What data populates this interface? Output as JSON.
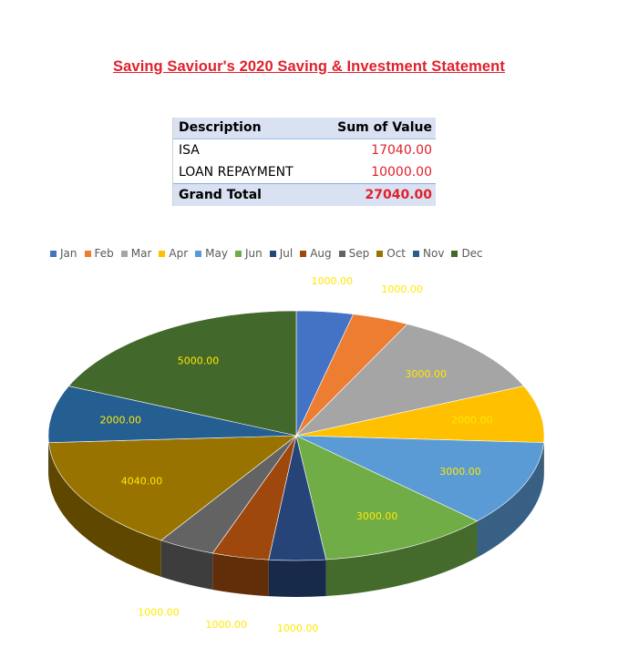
{
  "title": "Saving Saviour's 2020 Saving & Investment Statement",
  "pivot": {
    "headers": [
      "Description",
      "Sum of  Value"
    ],
    "rows": [
      {
        "description": "ISA",
        "value": "17040.00"
      },
      {
        "description": "LOAN REPAYMENT",
        "value": "10000.00"
      }
    ],
    "total": {
      "label": "Grand Total",
      "value": "27040.00"
    }
  },
  "chart_data": {
    "type": "pie",
    "style": "3d",
    "categories": [
      "Jan",
      "Feb",
      "Mar",
      "Apr",
      "May",
      "Jun",
      "Jul",
      "Aug",
      "Sep",
      "Oct",
      "Nov",
      "Dec"
    ],
    "values": [
      1000,
      1000,
      3000,
      2000,
      3000,
      3000,
      1000,
      1000,
      1000,
      4040,
      2000,
      5000
    ],
    "data_labels": [
      "1000.00",
      "1000.00",
      "3000.00",
      "2000.00",
      "3000.00",
      "3000.00",
      "1000.00",
      "1000.00",
      "1000.00",
      "4040.00",
      "2000.00",
      "5000.00"
    ],
    "colors": [
      "#4472c4",
      "#ed7d31",
      "#a5a5a5",
      "#ffc000",
      "#5b9bd5",
      "#70ad47",
      "#264478",
      "#9e480e",
      "#636363",
      "#997300",
      "#255e91",
      "#43682b"
    ],
    "legend_position": "top",
    "data_label_color": "#ffe800"
  }
}
